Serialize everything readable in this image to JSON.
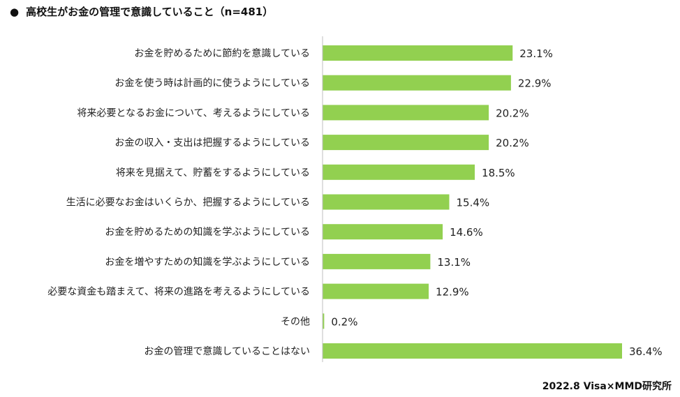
{
  "title": "高校生がお金の管理で意識していること（n=481）",
  "source": "2022.8 Visa×MMD研究所",
  "colors": {
    "bar": "#92D050",
    "axis": "#BFBFBF",
    "text": "#222222"
  },
  "chart_data": {
    "type": "bar",
    "orientation": "horizontal",
    "title": "高校生がお金の管理で意識していること（n=481）",
    "categories": [
      "お金を貯めるために節約を意識している",
      "お金を使う時は計画的に使うようにしている",
      "将来必要となるお金について、考えるようにしている",
      "お金の収入・支出は把握するようにしている",
      "将来を見据えて、貯蓄をするようにしている",
      "生活に必要なお金はいくらか、把握するようにしている",
      "お金を貯めるための知識を学ぶようにしている",
      "お金を増やすための知識を学ぶようにしている",
      "必要な資金も踏まえて、将来の進路を考えるようにしている",
      "その他",
      "お金の管理で意識していることはない"
    ],
    "values": [
      23.1,
      22.9,
      20.2,
      20.2,
      18.5,
      15.4,
      14.6,
      13.1,
      12.9,
      0.2,
      36.4
    ],
    "data_labels": [
      "23.1%",
      "22.9%",
      "20.2%",
      "20.2%",
      "18.5%",
      "15.4%",
      "14.6%",
      "13.1%",
      "12.9%",
      "0.2%",
      "36.4%"
    ],
    "unit": "%",
    "xlim": [
      0,
      40
    ],
    "grid": false,
    "legend": "none"
  }
}
